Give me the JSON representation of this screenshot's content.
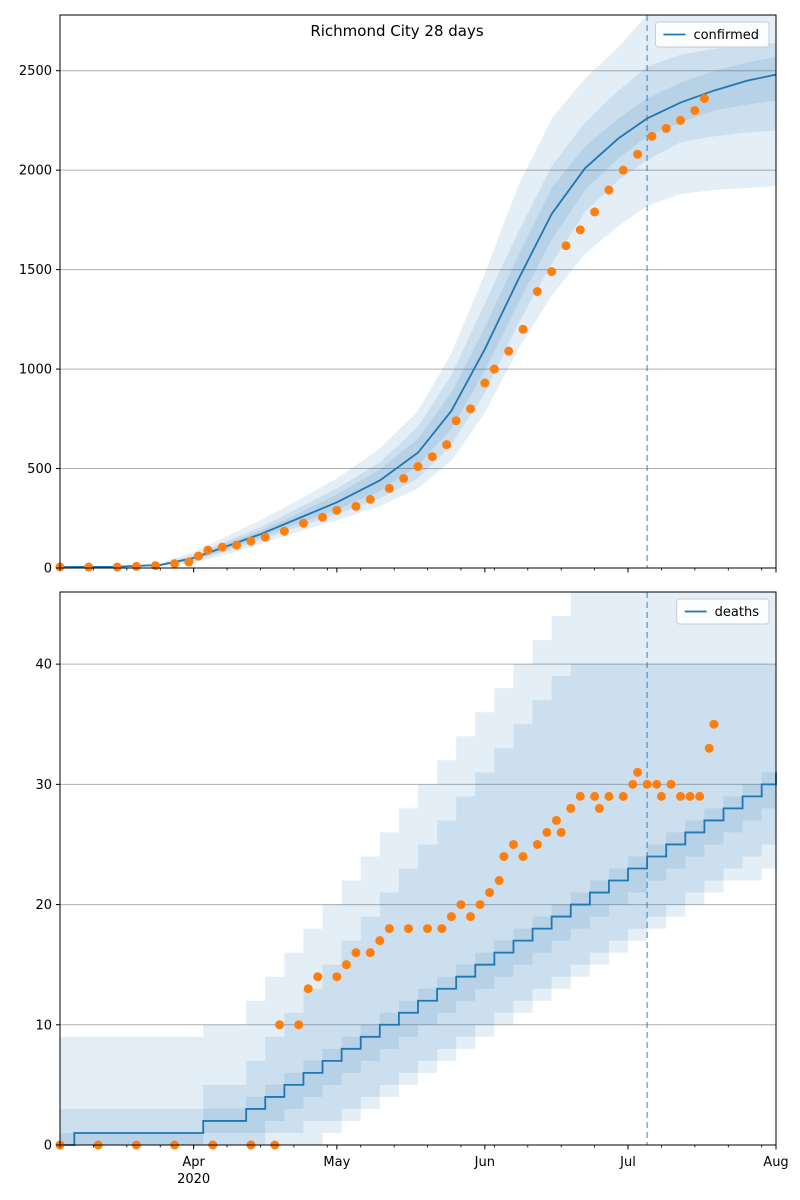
{
  "title": "Richmond City 28 days",
  "colors": {
    "model": "#1f77b4",
    "observed": "#ff7f0e",
    "band": "#1f77b4",
    "grid": "#b0b0b0",
    "forecast_line": "#1f77b4"
  },
  "x_axis": {
    "start_date": "2020-03-04",
    "end_date": "2020-08-01",
    "tick_labels": [
      {
        "date": "2020-04-01",
        "label": "Apr",
        "sublabel": "2020"
      },
      {
        "date": "2020-05-01",
        "label": "May",
        "sublabel": ""
      },
      {
        "date": "2020-06-01",
        "label": "Jun",
        "sublabel": ""
      },
      {
        "date": "2020-07-01",
        "label": "Jul",
        "sublabel": ""
      },
      {
        "date": "2020-08-01",
        "label": "Aug",
        "sublabel": ""
      }
    ],
    "forecast_start": "2020-07-05"
  },
  "chart_data": [
    {
      "type": "line",
      "legend": "confirmed",
      "legend_position": "top-right",
      "grid": "horizontal",
      "ylim": [
        0,
        2780
      ],
      "yticks": [
        0,
        500,
        1000,
        1500,
        2000,
        2500
      ],
      "model": [
        [
          "2020-03-04",
          5
        ],
        [
          "2020-03-15",
          6
        ],
        [
          "2020-03-25",
          15
        ],
        [
          "2020-04-01",
          50
        ],
        [
          "2020-04-08",
          110
        ],
        [
          "2020-04-15",
          170
        ],
        [
          "2020-04-22",
          240
        ],
        [
          "2020-05-01",
          330
        ],
        [
          "2020-05-10",
          440
        ],
        [
          "2020-05-18",
          580
        ],
        [
          "2020-05-25",
          790
        ],
        [
          "2020-06-01",
          1100
        ],
        [
          "2020-06-08",
          1450
        ],
        [
          "2020-06-15",
          1780
        ],
        [
          "2020-06-22",
          2010
        ],
        [
          "2020-06-29",
          2160
        ],
        [
          "2020-07-05",
          2260
        ],
        [
          "2020-07-12",
          2340
        ],
        [
          "2020-07-19",
          2400
        ],
        [
          "2020-07-26",
          2450
        ],
        [
          "2020-08-01",
          2480
        ]
      ],
      "bands": [
        {
          "lower": [
            5,
            5,
            8,
            25,
            70,
            120,
            175,
            240,
            310,
            400,
            540,
            780,
            1100,
            1370,
            1580,
            1720,
            1820,
            1880,
            1900,
            1910,
            1920
          ],
          "upper": [
            5,
            8,
            25,
            80,
            160,
            240,
            330,
            450,
            600,
            790,
            1080,
            1480,
            1920,
            2260,
            2460,
            2620,
            2780,
            2780,
            2780,
            2780,
            2780
          ]
        },
        {
          "lower": [
            5,
            5,
            10,
            35,
            85,
            140,
            200,
            270,
            350,
            450,
            620,
            880,
            1230,
            1530,
            1790,
            1950,
            2050,
            2140,
            2170,
            2190,
            2200
          ],
          "upper": [
            5,
            7,
            20,
            65,
            135,
            205,
            290,
            400,
            530,
            710,
            970,
            1330,
            1690,
            2020,
            2240,
            2400,
            2520,
            2580,
            2610,
            2630,
            2640
          ]
        },
        {
          "lower": [
            5,
            5,
            12,
            42,
            95,
            153,
            217,
            293,
            388,
            515,
            700,
            990,
            1330,
            1650,
            1900,
            2060,
            2170,
            2240,
            2300,
            2330,
            2350
          ],
          "upper": [
            5,
            6,
            18,
            58,
            125,
            188,
            264,
            370,
            495,
            650,
            880,
            1210,
            1570,
            1910,
            2120,
            2260,
            2360,
            2440,
            2500,
            2540,
            2570
          ]
        }
      ],
      "observed": [
        [
          "2020-03-04",
          5
        ],
        [
          "2020-03-10",
          5
        ],
        [
          "2020-03-16",
          5
        ],
        [
          "2020-03-20",
          8
        ],
        [
          "2020-03-24",
          12
        ],
        [
          "2020-03-28",
          22
        ],
        [
          "2020-03-31",
          30
        ],
        [
          "2020-04-02",
          60
        ],
        [
          "2020-04-04",
          90
        ],
        [
          "2020-04-07",
          105
        ],
        [
          "2020-04-10",
          115
        ],
        [
          "2020-04-13",
          135
        ],
        [
          "2020-04-16",
          155
        ],
        [
          "2020-04-20",
          185
        ],
        [
          "2020-04-24",
          225
        ],
        [
          "2020-04-28",
          255
        ],
        [
          "2020-05-01",
          290
        ],
        [
          "2020-05-05",
          310
        ],
        [
          "2020-05-08",
          345
        ],
        [
          "2020-05-12",
          400
        ],
        [
          "2020-05-15",
          450
        ],
        [
          "2020-05-18",
          510
        ],
        [
          "2020-05-21",
          560
        ],
        [
          "2020-05-24",
          620
        ],
        [
          "2020-05-26",
          740
        ],
        [
          "2020-05-29",
          800
        ],
        [
          "2020-06-01",
          930
        ],
        [
          "2020-06-03",
          1000
        ],
        [
          "2020-06-06",
          1090
        ],
        [
          "2020-06-09",
          1200
        ],
        [
          "2020-06-12",
          1390
        ],
        [
          "2020-06-15",
          1490
        ],
        [
          "2020-06-18",
          1620
        ],
        [
          "2020-06-21",
          1700
        ],
        [
          "2020-06-24",
          1790
        ],
        [
          "2020-06-27",
          1900
        ],
        [
          "2020-06-30",
          2000
        ],
        [
          "2020-07-03",
          2080
        ],
        [
          "2020-07-06",
          2170
        ],
        [
          "2020-07-09",
          2210
        ],
        [
          "2020-07-12",
          2250
        ],
        [
          "2020-07-15",
          2300
        ],
        [
          "2020-07-17",
          2360
        ]
      ]
    },
    {
      "type": "line",
      "legend": "deaths",
      "legend_position": "top-right",
      "grid": "horizontal",
      "ylim": [
        0,
        46
      ],
      "yticks": [
        0,
        10,
        20,
        30,
        40
      ],
      "model": [
        [
          "2020-03-04",
          0
        ],
        [
          "2020-03-07",
          1
        ],
        [
          "2020-03-20",
          1
        ],
        [
          "2020-04-03",
          2
        ],
        [
          "2020-04-12",
          3
        ],
        [
          "2020-04-16",
          4
        ],
        [
          "2020-04-20",
          5
        ],
        [
          "2020-04-24",
          6
        ],
        [
          "2020-04-28",
          7
        ],
        [
          "2020-05-02",
          8
        ],
        [
          "2020-05-06",
          9
        ],
        [
          "2020-05-10",
          10
        ],
        [
          "2020-05-14",
          11
        ],
        [
          "2020-05-18",
          12
        ],
        [
          "2020-05-22",
          13
        ],
        [
          "2020-05-26",
          14
        ],
        [
          "2020-05-30",
          15
        ],
        [
          "2020-06-03",
          16
        ],
        [
          "2020-06-07",
          17
        ],
        [
          "2020-06-11",
          18
        ],
        [
          "2020-06-15",
          19
        ],
        [
          "2020-06-19",
          20
        ],
        [
          "2020-06-23",
          21
        ],
        [
          "2020-06-27",
          22
        ],
        [
          "2020-07-01",
          23
        ],
        [
          "2020-07-05",
          24
        ],
        [
          "2020-07-09",
          25
        ],
        [
          "2020-07-13",
          26
        ],
        [
          "2020-07-17",
          27
        ],
        [
          "2020-07-21",
          28
        ],
        [
          "2020-07-25",
          29
        ],
        [
          "2020-07-29",
          30
        ],
        [
          "2020-08-01",
          31
        ]
      ],
      "bands": [
        {
          "lower": [
            0,
            0,
            0,
            0,
            0,
            0,
            0,
            0,
            1,
            2,
            3,
            4,
            5,
            6,
            7,
            8,
            9,
            10,
            11,
            12,
            13,
            14,
            15,
            16,
            17,
            18,
            19,
            20,
            21,
            22,
            22,
            23,
            24
          ],
          "upper": [
            9,
            9,
            9,
            10,
            12,
            14,
            16,
            18,
            20,
            22,
            24,
            26,
            28,
            30,
            32,
            34,
            36,
            38,
            40,
            42,
            44,
            46,
            46,
            46,
            46,
            46,
            46,
            46,
            46,
            46,
            46,
            46,
            46
          ]
        },
        {
          "lower": [
            0,
            0,
            0,
            0,
            0,
            1,
            1,
            2,
            2,
            3,
            4,
            5,
            6,
            7,
            8,
            9,
            10,
            11,
            12,
            13,
            14,
            15,
            16,
            17,
            18,
            19,
            20,
            21,
            22,
            23,
            24,
            25,
            26
          ],
          "upper": [
            3,
            3,
            3,
            5,
            7,
            9,
            11,
            13,
            15,
            17,
            19,
            21,
            23,
            25,
            27,
            29,
            31,
            33,
            35,
            37,
            39,
            40,
            40,
            40,
            40,
            40,
            40,
            40,
            40,
            40,
            40,
            40,
            40
          ]
        },
        {
          "lower": [
            0,
            0,
            0,
            1,
            1,
            2,
            3,
            4,
            5,
            6,
            7,
            8,
            9,
            10,
            11,
            12,
            13,
            14,
            15,
            16,
            17,
            18,
            19,
            20,
            21,
            22,
            23,
            24,
            25,
            26,
            27,
            28,
            29
          ],
          "upper": [
            1,
            1,
            1,
            3,
            4,
            5,
            6,
            7,
            8,
            9,
            10,
            11,
            12,
            13,
            14,
            15,
            16,
            17,
            18,
            19,
            20,
            21,
            22,
            23,
            24,
            25,
            26,
            27,
            28,
            29,
            30,
            31,
            32
          ]
        }
      ],
      "observed": [
        [
          "2020-03-04",
          0
        ],
        [
          "2020-03-12",
          0
        ],
        [
          "2020-03-20",
          0
        ],
        [
          "2020-03-28",
          0
        ],
        [
          "2020-04-05",
          0
        ],
        [
          "2020-04-13",
          0
        ],
        [
          "2020-04-18",
          0
        ],
        [
          "2020-04-19",
          10
        ],
        [
          "2020-04-23",
          10
        ],
        [
          "2020-04-25",
          13
        ],
        [
          "2020-04-27",
          14
        ],
        [
          "2020-05-01",
          14
        ],
        [
          "2020-05-03",
          15
        ],
        [
          "2020-05-05",
          16
        ],
        [
          "2020-05-08",
          16
        ],
        [
          "2020-05-10",
          17
        ],
        [
          "2020-05-12",
          18
        ],
        [
          "2020-05-16",
          18
        ],
        [
          "2020-05-20",
          18
        ],
        [
          "2020-05-23",
          18
        ],
        [
          "2020-05-25",
          19
        ],
        [
          "2020-05-27",
          20
        ],
        [
          "2020-05-29",
          19
        ],
        [
          "2020-05-31",
          20
        ],
        [
          "2020-06-02",
          21
        ],
        [
          "2020-06-04",
          22
        ],
        [
          "2020-06-05",
          24
        ],
        [
          "2020-06-07",
          25
        ],
        [
          "2020-06-09",
          24
        ],
        [
          "2020-06-12",
          25
        ],
        [
          "2020-06-14",
          26
        ],
        [
          "2020-06-16",
          27
        ],
        [
          "2020-06-17",
          26
        ],
        [
          "2020-06-19",
          28
        ],
        [
          "2020-06-21",
          29
        ],
        [
          "2020-06-24",
          29
        ],
        [
          "2020-06-25",
          28
        ],
        [
          "2020-06-27",
          29
        ],
        [
          "2020-06-30",
          29
        ],
        [
          "2020-07-02",
          30
        ],
        [
          "2020-07-03",
          31
        ],
        [
          "2020-07-05",
          30
        ],
        [
          "2020-07-07",
          30
        ],
        [
          "2020-07-08",
          29
        ],
        [
          "2020-07-10",
          30
        ],
        [
          "2020-07-12",
          29
        ],
        [
          "2020-07-14",
          29
        ],
        [
          "2020-07-16",
          29
        ],
        [
          "2020-07-18",
          33
        ],
        [
          "2020-07-19",
          35
        ]
      ]
    }
  ]
}
